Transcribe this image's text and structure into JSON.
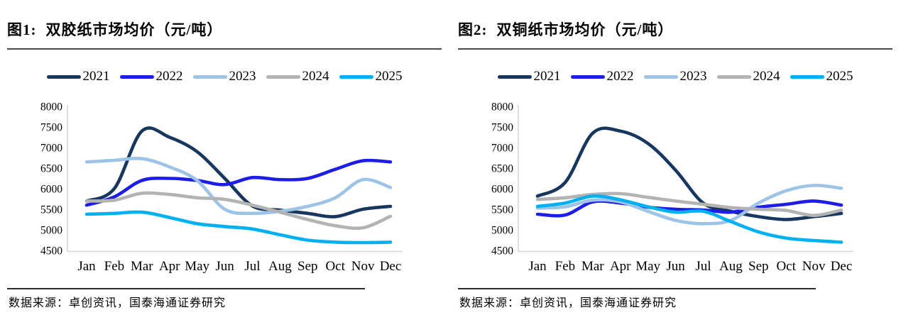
{
  "panels": [
    {
      "fig_label": "图1:",
      "title": "双胶纸市场均价（元/吨）",
      "source": "数据来源：卓创资讯，国泰海通证券研究"
    },
    {
      "fig_label": "图2:",
      "title": "双铜纸市场均价（元/吨）",
      "source": "数据来源：卓创资讯，国泰海通证券研究"
    }
  ],
  "chart_data": [
    {
      "type": "line",
      "title": "双胶纸市场均价（元/吨）",
      "xlabel": "",
      "ylabel": "元/吨",
      "categories": [
        "Jan",
        "Feb",
        "Mar",
        "Apr",
        "May",
        "Jun",
        "Jul",
        "Aug",
        "Sep",
        "Oct",
        "Nov",
        "Dec"
      ],
      "ylim": [
        4500,
        8000
      ],
      "ytick_step": 500,
      "grid": false,
      "legend_position": "top",
      "series": [
        {
          "name": "2021",
          "color": "#17375e",
          "values": [
            5700,
            6000,
            7400,
            7250,
            6900,
            6250,
            5580,
            5480,
            5400,
            5320,
            5500,
            5570
          ]
        },
        {
          "name": "2022",
          "color": "#1d1de8",
          "values": [
            5600,
            5800,
            6200,
            6250,
            6200,
            6100,
            6270,
            6220,
            6250,
            6470,
            6680,
            6650
          ]
        },
        {
          "name": "2023",
          "color": "#9dc3e6",
          "values": [
            6650,
            6690,
            6730,
            6530,
            6200,
            5500,
            5400,
            5450,
            5570,
            5780,
            6220,
            6030
          ]
        },
        {
          "name": "2024",
          "color": "#b3b3b3",
          "values": [
            5700,
            5720,
            5890,
            5860,
            5780,
            5740,
            5600,
            5430,
            5250,
            5100,
            5050,
            5330
          ]
        },
        {
          "name": "2025",
          "color": "#00b0f0",
          "values": [
            5380,
            5400,
            5430,
            5300,
            5150,
            5080,
            5020,
            4880,
            4750,
            4700,
            4690,
            4700
          ]
        }
      ]
    },
    {
      "type": "line",
      "title": "双铜纸市场均价（元/吨）",
      "xlabel": "",
      "ylabel": "元/吨",
      "categories": [
        "Jan",
        "Feb",
        "Mar",
        "Apr",
        "May",
        "Jun",
        "Jul",
        "Aug",
        "Sep",
        "Oct",
        "Nov",
        "Dec"
      ],
      "ylim": [
        4500,
        8000
      ],
      "ytick_step": 500,
      "grid": false,
      "legend_position": "top",
      "series": [
        {
          "name": "2021",
          "color": "#17375e",
          "values": [
            5820,
            6150,
            7350,
            7400,
            7100,
            6450,
            5650,
            5450,
            5320,
            5250,
            5320,
            5400
          ]
        },
        {
          "name": "2022",
          "color": "#1d1de8",
          "values": [
            5380,
            5360,
            5680,
            5650,
            5550,
            5500,
            5480,
            5430,
            5550,
            5620,
            5700,
            5600
          ]
        },
        {
          "name": "2023",
          "color": "#9dc3e6",
          "values": [
            5530,
            5560,
            5720,
            5680,
            5450,
            5230,
            5150,
            5230,
            5650,
            5950,
            6080,
            6010
          ]
        },
        {
          "name": "2024",
          "color": "#b3b3b3",
          "values": [
            5740,
            5780,
            5860,
            5880,
            5790,
            5700,
            5620,
            5540,
            5500,
            5470,
            5350,
            5480
          ]
        },
        {
          "name": "2025",
          "color": "#00b0f0",
          "values": [
            5570,
            5650,
            5820,
            5730,
            5560,
            5430,
            5450,
            5200,
            4950,
            4800,
            4740,
            4700
          ]
        }
      ]
    }
  ]
}
